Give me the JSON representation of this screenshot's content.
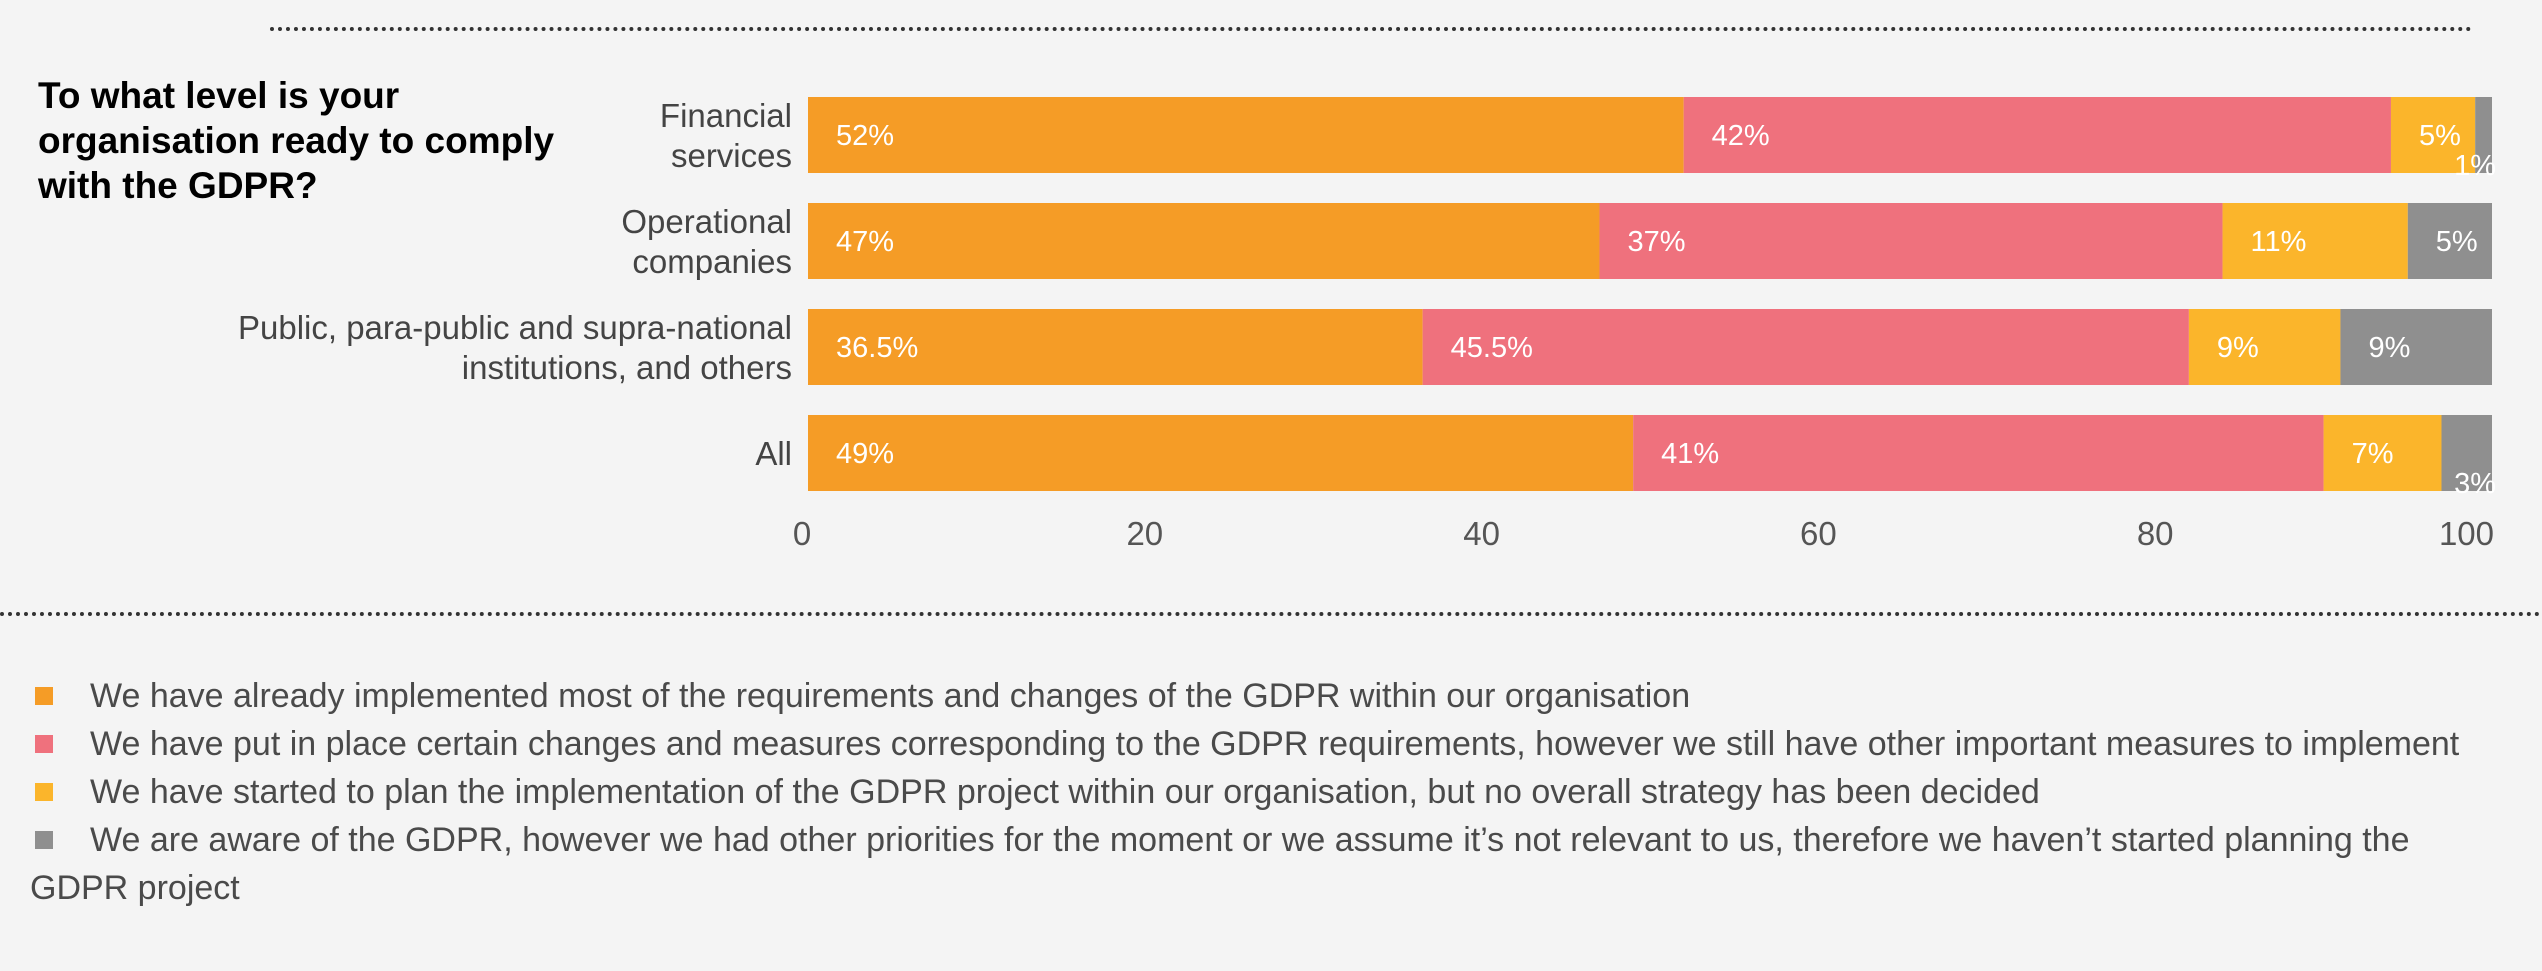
{
  "title": "To what level is your organisation ready to comply with the GDPR?",
  "colors": {
    "implemented": "#f59c26",
    "partial": "#ef717d",
    "planning": "#fbb52b",
    "not_started": "#8f8f8f"
  },
  "chart_data": {
    "type": "bar",
    "orientation": "horizontal",
    "stacked": true,
    "categories": [
      [
        "Financial",
        "services"
      ],
      [
        "Operational",
        "companies"
      ],
      [
        "Public, para-public and supra-national",
        "institutions, and others"
      ],
      [
        "All"
      ]
    ],
    "series": [
      {
        "key": "implemented",
        "values": [
          52,
          47,
          36.5,
          49
        ],
        "labels": [
          "52%",
          "47%",
          "36.5%",
          "49%"
        ]
      },
      {
        "key": "partial",
        "values": [
          42,
          37,
          45.5,
          41
        ],
        "labels": [
          "42%",
          "37%",
          "45.5%",
          "41%"
        ]
      },
      {
        "key": "planning",
        "values": [
          5,
          11,
          9,
          7
        ],
        "labels": [
          "5%",
          "11%",
          "9%",
          "7%"
        ]
      },
      {
        "key": "not_started",
        "values": [
          1,
          5,
          9,
          3
        ],
        "labels": [
          "1%",
          "5%",
          "9%",
          "3%"
        ]
      }
    ],
    "xlim": [
      0,
      100
    ],
    "xticks": [
      "0",
      "20",
      "40",
      "60",
      "80",
      "100"
    ],
    "grid": false,
    "legend_position": "bottom"
  },
  "legend": [
    {
      "key": "implemented",
      "text": "We have already implemented most of the requirements and changes of the GDPR within our organisation"
    },
    {
      "key": "partial",
      "text": "We have put in place certain changes and measures corresponding to the GDPR requirements, however we still have other important measures to implement"
    },
    {
      "key": "planning",
      "text": "We have started to plan the implementation of the GDPR project within our organisation, but no overall strategy has been decided"
    },
    {
      "key": "not_started",
      "text": "We are aware of the GDPR, however we had other priorities for the moment or we assume it’s not relevant to us, therefore we haven’t started planning the GDPR project"
    }
  ]
}
